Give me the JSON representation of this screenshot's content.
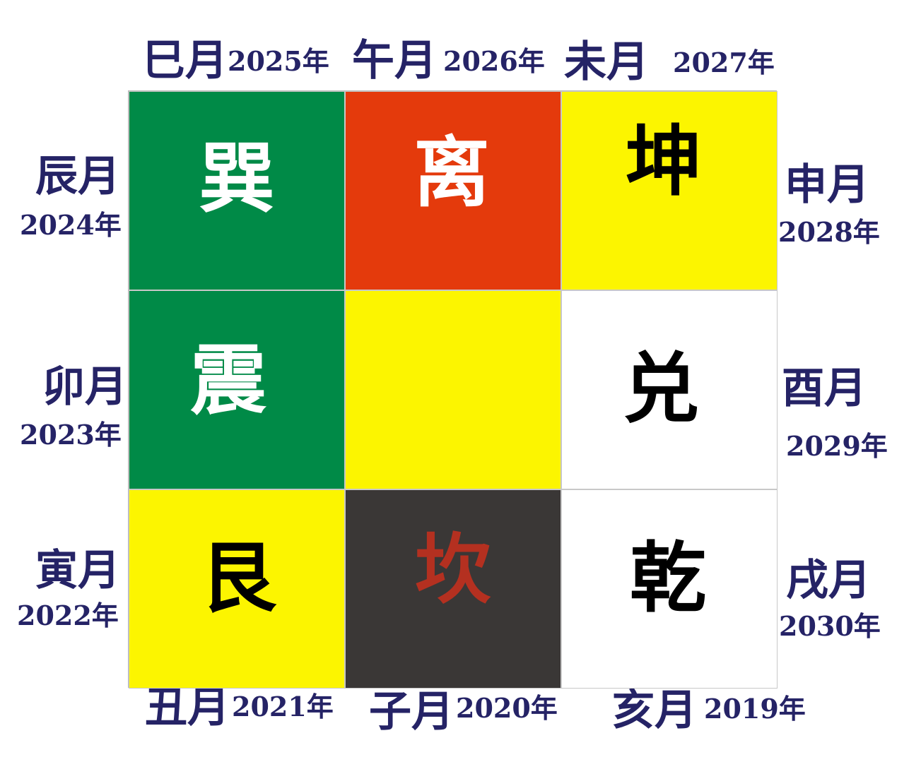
{
  "colors": {
    "label": "#252366",
    "green": "#008a47",
    "red": "#e43a0c",
    "yellow": "#fcf500",
    "white": "#ffffff",
    "dark": "#3a3736",
    "kan_text": "#b43020",
    "black": "#000000"
  },
  "grid": {
    "rows": [
      [
        {
          "trigram": "巽",
          "bg": "#008a47",
          "fg": "#ffffff"
        },
        {
          "trigram": "离",
          "bg": "#e43a0c",
          "fg": "#ffffff"
        },
        {
          "trigram": "坤",
          "bg": "#fcf500",
          "fg": "#000000"
        }
      ],
      [
        {
          "trigram": "震",
          "bg": "#008a47",
          "fg": "#ffffff"
        },
        {
          "trigram": "",
          "bg": "#fcf500",
          "fg": "#000000"
        },
        {
          "trigram": "兑",
          "bg": "#ffffff",
          "fg": "#000000"
        }
      ],
      [
        {
          "trigram": "艮",
          "bg": "#fcf500",
          "fg": "#000000"
        },
        {
          "trigram": "坎",
          "bg": "#3a3736",
          "fg": "#b43020"
        },
        {
          "trigram": "乾",
          "bg": "#ffffff",
          "fg": "#000000"
        }
      ]
    ]
  },
  "labels": {
    "top": [
      {
        "month": "巳月",
        "year": "2025年"
      },
      {
        "month": "午月",
        "year": "2026年"
      },
      {
        "month": "未月",
        "year": "2027年"
      }
    ],
    "left": [
      {
        "month": "辰月",
        "year": "2024年"
      },
      {
        "month": "卯月",
        "year": "2023年"
      },
      {
        "month": "寅月",
        "year": "2022年"
      }
    ],
    "right": [
      {
        "month": "申月",
        "year": "2028年"
      },
      {
        "month": "酉月",
        "year": "2029年"
      },
      {
        "month": "戌月",
        "year": "2030年"
      }
    ],
    "bottom": [
      {
        "month": "丑月",
        "year": "2021年"
      },
      {
        "month": "子月",
        "year": "2020年"
      },
      {
        "month": "亥月",
        "year": "2019年"
      }
    ]
  }
}
